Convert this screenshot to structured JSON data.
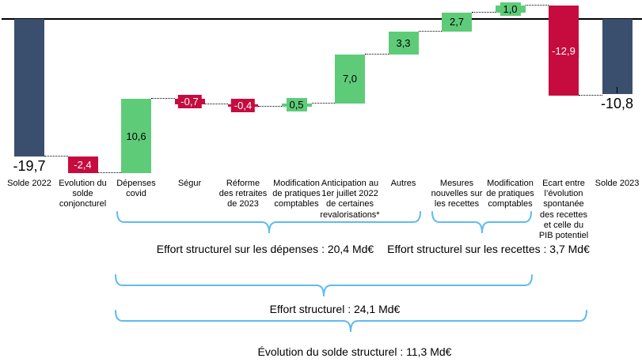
{
  "chart_data": {
    "type": "bar",
    "subtype": "waterfall",
    "title": "",
    "unit": "Md€",
    "zero_line": 0,
    "legend": null,
    "colors": {
      "increase": "#5ECB79",
      "decrease": "#C60C3F",
      "total": "#3A4E6E"
    },
    "bars": [
      {
        "id": "solde-2022",
        "label": "Solde 2022",
        "value": -19.7,
        "value_label": "-19,7",
        "kind": "total"
      },
      {
        "id": "evolution-solde-conjoncturel",
        "label": "Evolution du\nsolde\nconjoncturel",
        "value": -2.4,
        "value_label": "-2,4",
        "kind": "decrease"
      },
      {
        "id": "depenses-covid",
        "label": "Dépenses\ncovid",
        "value": 10.6,
        "value_label": "10,6",
        "kind": "increase"
      },
      {
        "id": "segur",
        "label": "Ségur",
        "value": -0.7,
        "value_label": "-0,7",
        "kind": "decrease"
      },
      {
        "id": "reforme-retraites-2023",
        "label": "Réforme\ndes retraites\nde 2023",
        "value": -0.4,
        "value_label": "-0,4",
        "kind": "decrease"
      },
      {
        "id": "modification-pratiques-comptables-depenses",
        "label": "Modification\nde pratiques\ncomptables",
        "value": 0.5,
        "value_label": "0,5",
        "kind": "increase"
      },
      {
        "id": "anticipation-revalorisations",
        "label": "Anticipation au\n1er juillet 2022\nde certaines\nrevalorisations*",
        "value": 7.0,
        "value_label": "7,0",
        "kind": "increase"
      },
      {
        "id": "autres",
        "label": "Autres",
        "value": 3.3,
        "value_label": "3,3",
        "kind": "increase"
      },
      {
        "id": "mesures-nouvelles-recettes",
        "label": "Mesures\nnouvelles sur\nles recettes",
        "value": 2.7,
        "value_label": "2,7",
        "kind": "increase"
      },
      {
        "id": "modification-pratiques-comptables-recettes",
        "label": "Modification\nde pratiques\ncomptables",
        "value": 1.0,
        "value_label": "1,0",
        "kind": "increase"
      },
      {
        "id": "ecart-recettes-pib-potentiel",
        "label": "Ecart entre\nl’évolution\nspontanée\ndes recettes\net celle du\nPIB potentiel",
        "value": -12.9,
        "value_label": "-12,9",
        "kind": "decrease"
      },
      {
        "id": "solde-2023",
        "label": "Solde 2023",
        "value": -10.8,
        "value_label": "-10,8",
        "kind": "total"
      }
    ]
  },
  "annotations": {
    "brace_color": "#5FBBEF",
    "depenses": "Effort structurel sur les dépenses : 20,4 Md€",
    "recettes": "Effort structurel sur les recettes : 3,7 Md€",
    "effort_total": "Effort structurel : 24,1 Md€",
    "solde_structurel": "Évolution du solde structurel : 11,3 Md€"
  }
}
